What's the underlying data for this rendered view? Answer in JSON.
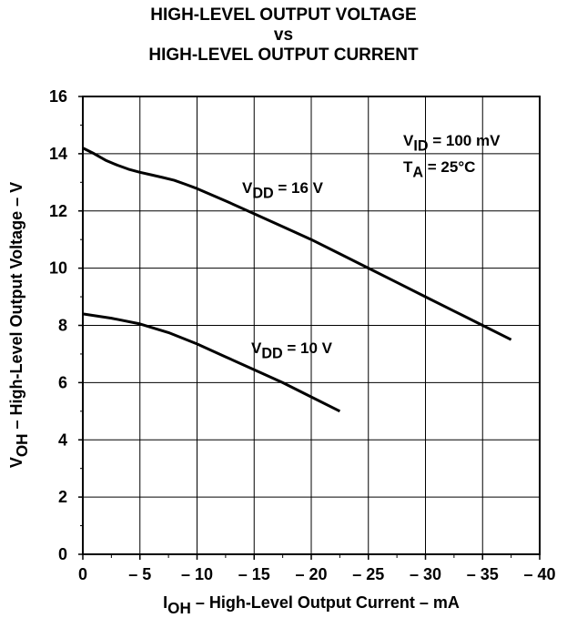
{
  "chart_data": {
    "type": "line",
    "title": [
      "HIGH-LEVEL OUTPUT VOLTAGE",
      "vs",
      "HIGH-LEVEL OUTPUT CURRENT"
    ],
    "xlabel": {
      "main": "I",
      "sub": "OH",
      "rest": " – High-Level Output Current – mA"
    },
    "ylabel": {
      "main": "V",
      "sub": "OH",
      "rest": " – High-Level Output Voltage – V"
    },
    "xlim": [
      0,
      -40
    ],
    "ylim": [
      0,
      16
    ],
    "x_ticks": [
      0,
      -5,
      -10,
      -15,
      -20,
      -25,
      -30,
      -35,
      -40
    ],
    "x_tick_labels": [
      "0",
      "– 5",
      "– 10",
      "– 15",
      "– 20",
      "– 25",
      "– 30",
      "– 35",
      "– 40"
    ],
    "y_ticks": [
      0,
      2,
      4,
      6,
      8,
      10,
      12,
      14,
      16
    ],
    "y_tick_labels": [
      "0",
      "2",
      "4",
      "6",
      "8",
      "10",
      "12",
      "14",
      "16"
    ],
    "grid": true,
    "conditions": [
      {
        "main": "V",
        "sub": "ID",
        "rest": " = 100 mV"
      },
      {
        "main": "T",
        "sub": "A",
        "rest": " = 25°C"
      }
    ],
    "series": [
      {
        "name": {
          "main": "V",
          "sub": "DD",
          "rest": " = 16 V"
        },
        "x": [
          0,
          -1,
          -2,
          -3,
          -4,
          -5,
          -6,
          -7,
          -8,
          -9,
          -10,
          -12.5,
          -15,
          -17.5,
          -20,
          -22.5,
          -25,
          -27.5,
          -30,
          -32.5,
          -35,
          -37.5
        ],
        "y": [
          14.2,
          14.0,
          13.77,
          13.6,
          13.46,
          13.35,
          13.26,
          13.17,
          13.07,
          12.93,
          12.78,
          12.35,
          11.9,
          11.45,
          11.0,
          10.5,
          10.0,
          9.5,
          9.0,
          8.5,
          8.0,
          7.5
        ]
      },
      {
        "name": {
          "main": "V",
          "sub": "DD",
          "rest": " = 10 V"
        },
        "x": [
          0,
          -2.5,
          -5,
          -7.5,
          -10,
          -12.5,
          -15,
          -17.5,
          -20,
          -22.5
        ],
        "y": [
          8.4,
          8.25,
          8.05,
          7.75,
          7.35,
          6.9,
          6.45,
          6.0,
          5.5,
          5.0
        ]
      }
    ]
  }
}
